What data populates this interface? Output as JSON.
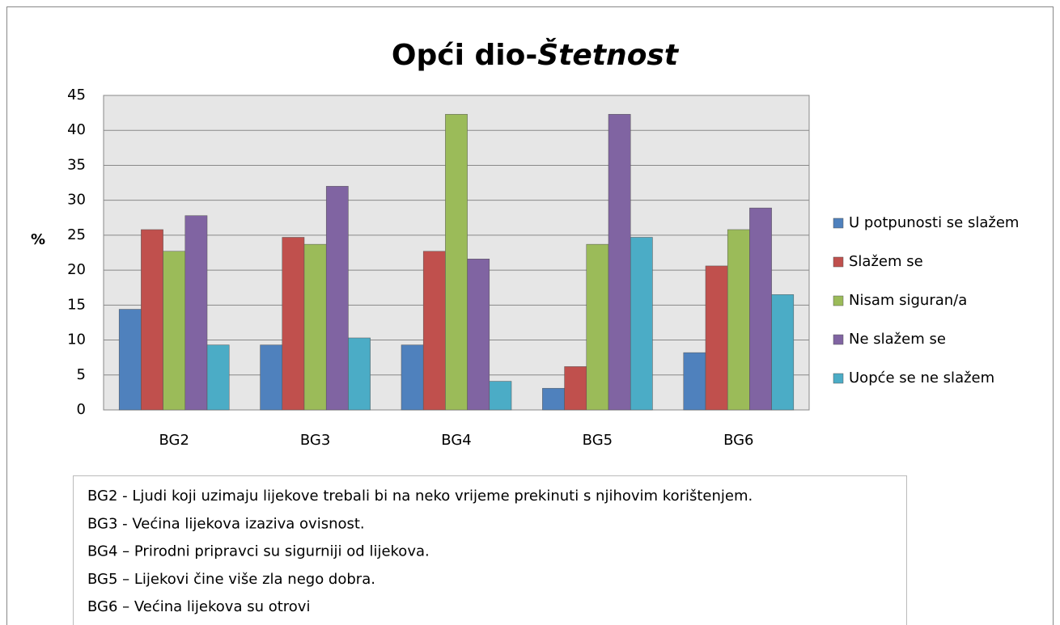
{
  "chart_data": {
    "type": "bar",
    "title": "Opći dio-",
    "title_italic": "Štetnost",
    "y_label": "%",
    "categories": [
      "BG2",
      "BG3",
      "BG4",
      "BG5",
      "BG6"
    ],
    "series": [
      {
        "name": "U potpunosti se slažem",
        "color": "#4f81bd",
        "values": [
          14.4,
          9.3,
          9.3,
          3.1,
          8.2
        ]
      },
      {
        "name": "Slažem se",
        "color": "#c0504d",
        "values": [
          25.8,
          24.7,
          22.7,
          6.2,
          20.6
        ]
      },
      {
        "name": "Nisam siguran/a",
        "color": "#9bbb59",
        "values": [
          22.7,
          23.7,
          42.3,
          23.7,
          25.8
        ]
      },
      {
        "name": "Ne slažem se",
        "color": "#8064a2",
        "values": [
          27.8,
          32.0,
          21.6,
          42.3,
          28.9
        ]
      },
      {
        "name": "Uopće se ne slažem",
        "color": "#4bacc6",
        "values": [
          9.3,
          10.3,
          4.1,
          24.7,
          16.5
        ]
      }
    ],
    "ylim": [
      0,
      45
    ],
    "yticks": [
      0,
      5,
      10,
      15,
      20,
      25,
      30,
      35,
      40,
      45
    ],
    "grid": true,
    "legend": "right",
    "notes": [
      "BG2 - Ljudi koji uzimaju lijekove trebali bi na neko vrijeme prekinuti s njihovim korištenjem.",
      "BG3 - Većina lijekova izaziva ovisnost.",
      "BG4 – Prirodni pripravci su sigurniji od lijekova.",
      "BG5 – Lijekovi čine više zla nego dobra.",
      "BG6 – Većina lijekova su otrovi"
    ]
  }
}
